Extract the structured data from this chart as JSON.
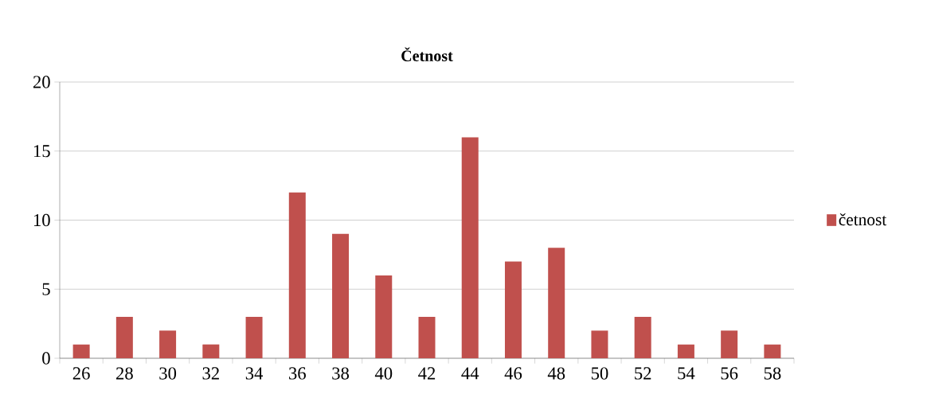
{
  "chart_data": {
    "type": "bar",
    "title": "Četnost",
    "categories": [
      "26",
      "28",
      "30",
      "32",
      "34",
      "36",
      "38",
      "40",
      "42",
      "44",
      "46",
      "48",
      "50",
      "52",
      "54",
      "56",
      "58"
    ],
    "series": [
      {
        "name": "četnost",
        "color": "#c0504d",
        "values": [
          1,
          3,
          2,
          1,
          3,
          12,
          9,
          6,
          3,
          16,
          7,
          8,
          2,
          3,
          1,
          2,
          1
        ]
      }
    ],
    "ylim": [
      0,
      20
    ],
    "yticks": [
      0,
      5,
      10,
      15,
      20
    ],
    "grid": "y",
    "legend": "right"
  }
}
